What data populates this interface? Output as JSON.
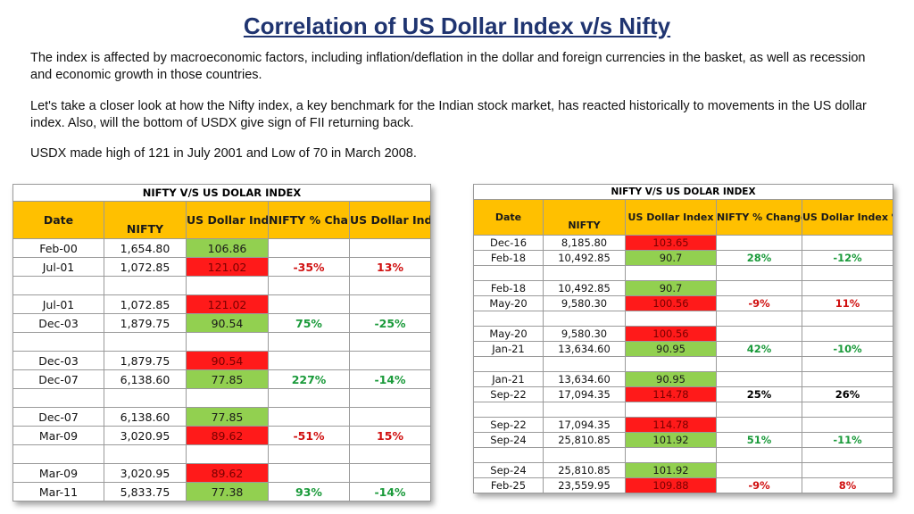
{
  "title": "Correlation of US Dollar Index v/s Nifty",
  "paragraphs": {
    "p1": "The index is affected by macroeconomic factors, including inflation/deflation in the dollar and foreign currencies in the basket, as well as recession and economic growth in those countries.",
    "p2": "Let's take a closer look at how the Nifty index, a key benchmark for the Indian stock market, has reacted historically to movements in the US dollar index. Also, will the bottom of USDX give sign of FII returning back.",
    "p3": "USDX made high of 121 in July 2001 and Low of 70 in March 2008."
  },
  "left_table": {
    "caption": "NIFTY V/S US DOLAR INDEX",
    "headers": {
      "date": "Date",
      "nifty": "NIFTY",
      "usd": "US Dollar Index",
      "nifty_change": "NIFTY % Change",
      "usd_change": "US Dollar Index %"
    },
    "groups": [
      {
        "rows": [
          {
            "date": "Feb-00",
            "nifty": "1,654.80",
            "usd": "106.86",
            "usd_color": "grn"
          },
          {
            "date": "Jul-01",
            "nifty": "1,072.85",
            "usd": "121.02",
            "usd_color": "red"
          }
        ],
        "nifty_change": "-35%",
        "nifty_sign": "neg",
        "usd_change": "13%",
        "usd_sign": "neg"
      },
      {
        "rows": [
          {
            "date": "Jul-01",
            "nifty": "1,072.85",
            "usd": "121.02",
            "usd_color": "red"
          },
          {
            "date": "Dec-03",
            "nifty": "1,879.75",
            "usd": "90.54",
            "usd_color": "grn"
          }
        ],
        "nifty_change": "75%",
        "nifty_sign": "pos",
        "usd_change": "-25%",
        "usd_sign": "pos"
      },
      {
        "rows": [
          {
            "date": "Dec-03",
            "nifty": "1,879.75",
            "usd": "90.54",
            "usd_color": "red"
          },
          {
            "date": "Dec-07",
            "nifty": "6,138.60",
            "usd": "77.85",
            "usd_color": "grn"
          }
        ],
        "nifty_change": "227%",
        "nifty_sign": "pos",
        "usd_change": "-14%",
        "usd_sign": "pos"
      },
      {
        "rows": [
          {
            "date": "Dec-07",
            "nifty": "6,138.60",
            "usd": "77.85",
            "usd_color": "grn"
          },
          {
            "date": "Mar-09",
            "nifty": "3,020.95",
            "usd": "89.62",
            "usd_color": "red"
          }
        ],
        "nifty_change": "-51%",
        "nifty_sign": "neg",
        "usd_change": "15%",
        "usd_sign": "neg"
      },
      {
        "rows": [
          {
            "date": "Mar-09",
            "nifty": "3,020.95",
            "usd": "89.62",
            "usd_color": "red"
          },
          {
            "date": "Mar-11",
            "nifty": "5,833.75",
            "usd": "77.38",
            "usd_color": "grn"
          }
        ],
        "nifty_change": "93%",
        "nifty_sign": "pos",
        "usd_change": "-14%",
        "usd_sign": "pos"
      }
    ]
  },
  "right_table": {
    "caption": "NIFTY V/S US DOLAR INDEX",
    "headers": {
      "date": "Date",
      "nifty": "NIFTY",
      "usd": "US Dollar Index",
      "nifty_change": "NIFTY % Change",
      "usd_change": "US Dollar Index % Change"
    },
    "groups": [
      {
        "rows": [
          {
            "date": "Dec-16",
            "nifty": "8,185.80",
            "usd": "103.65",
            "usd_color": "red"
          },
          {
            "date": "Feb-18",
            "nifty": "10,492.85",
            "usd": "90.7",
            "usd_color": "grn"
          }
        ],
        "nifty_change": "28%",
        "nifty_sign": "pos",
        "usd_change": "-12%",
        "usd_sign": "pos"
      },
      {
        "rows": [
          {
            "date": "Feb-18",
            "nifty": "10,492.85",
            "usd": "90.7",
            "usd_color": "grn"
          },
          {
            "date": "May-20",
            "nifty": "9,580.30",
            "usd": "100.56",
            "usd_color": "red"
          }
        ],
        "nifty_change": "-9%",
        "nifty_sign": "neg",
        "usd_change": "11%",
        "usd_sign": "neg"
      },
      {
        "rows": [
          {
            "date": "May-20",
            "nifty": "9,580.30",
            "usd": "100.56",
            "usd_color": "red"
          },
          {
            "date": "Jan-21",
            "nifty": "13,634.60",
            "usd": "90.95",
            "usd_color": "grn"
          }
        ],
        "nifty_change": "42%",
        "nifty_sign": "pos",
        "usd_change": "-10%",
        "usd_sign": "pos"
      },
      {
        "rows": [
          {
            "date": "Jan-21",
            "nifty": "13,634.60",
            "usd": "90.95",
            "usd_color": "grn"
          },
          {
            "date": "Sep-22",
            "nifty": "17,094.35",
            "usd": "114.78",
            "usd_color": "red"
          }
        ],
        "nifty_change": "25%",
        "nifty_sign": "blk",
        "usd_change": "26%",
        "usd_sign": "blk"
      },
      {
        "rows": [
          {
            "date": "Sep-22",
            "nifty": "17,094.35",
            "usd": "114.78",
            "usd_color": "red"
          },
          {
            "date": "Sep-24",
            "nifty": "25,810.85",
            "usd": "101.92",
            "usd_color": "grn"
          }
        ],
        "nifty_change": "51%",
        "nifty_sign": "pos",
        "usd_change": "-11%",
        "usd_sign": "pos"
      },
      {
        "rows": [
          {
            "date": "Sep-24",
            "nifty": "25,810.85",
            "usd": "101.92",
            "usd_color": "grn"
          },
          {
            "date": "Feb-25",
            "nifty": "23,559.95",
            "usd": "109.88",
            "usd_color": "red"
          }
        ],
        "nifty_change": "-9%",
        "nifty_sign": "neg",
        "usd_change": "8%",
        "usd_sign": "neg"
      }
    ]
  }
}
